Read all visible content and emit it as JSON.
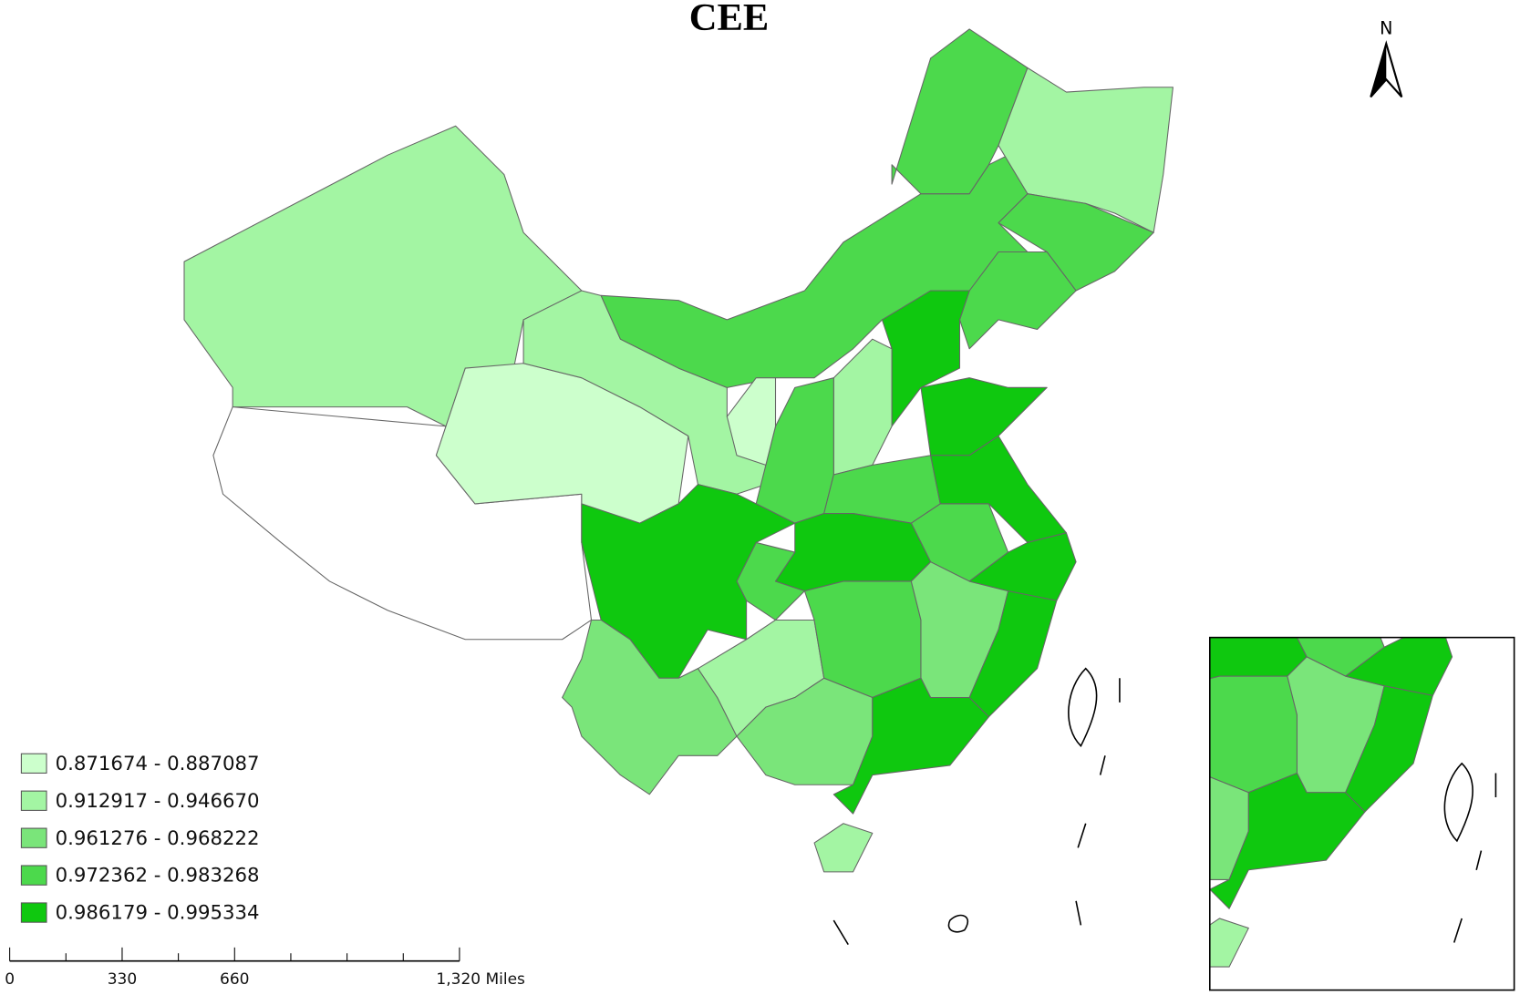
{
  "title": "CEE",
  "north_arrow": "N",
  "legend": {
    "items": [
      {
        "label": "0.871674 - 0.887087",
        "color": "#ccffcc"
      },
      {
        "label": "0.912917 - 0.946670",
        "color": "#a3f5a3"
      },
      {
        "label": "0.961276 - 0.968222",
        "color": "#7ae57a"
      },
      {
        "label": "0.972362 - 0.983268",
        "color": "#4cd94c"
      },
      {
        "label": "0.986179 - 0.995334",
        "color": "#0fc80f"
      }
    ]
  },
  "scale_bar": {
    "labels": [
      "0",
      "330",
      "660",
      "1,320 Miles"
    ]
  }
}
